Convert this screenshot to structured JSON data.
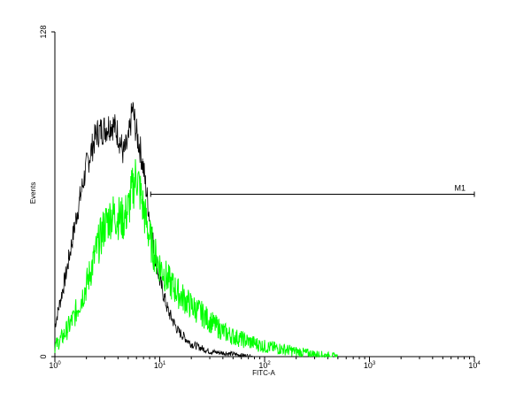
{
  "chart_data": {
    "type": "line",
    "title": "",
    "xlabel": "FITC-A",
    "ylabel": "Events",
    "x_scale": "log",
    "xlim": [
      1,
      10000
    ],
    "ylim": [
      0,
      128
    ],
    "y_ticks": [
      "0",
      "128"
    ],
    "x_ticks": [
      {
        "base": "10",
        "exp": "0"
      },
      {
        "base": "10",
        "exp": "1"
      },
      {
        "base": "10",
        "exp": "2"
      },
      {
        "base": "10",
        "exp": "3"
      },
      {
        "base": "10",
        "exp": "4"
      }
    ],
    "grid": false,
    "series": [
      {
        "color": "#000000",
        "points": [
          [
            1.0,
            12
          ],
          [
            1.1,
            20
          ],
          [
            1.3,
            34
          ],
          [
            1.6,
            55
          ],
          [
            2.0,
            75
          ],
          [
            2.5,
            88
          ],
          [
            3.0,
            90
          ],
          [
            3.5,
            92
          ],
          [
            4.0,
            88
          ],
          [
            4.5,
            80
          ],
          [
            5.0,
            84
          ],
          [
            5.5,
            98
          ],
          [
            6.0,
            88
          ],
          [
            6.5,
            82
          ],
          [
            7.0,
            74
          ],
          [
            8.0,
            55
          ],
          [
            9.0,
            40
          ],
          [
            10.0,
            30
          ],
          [
            12.0,
            18
          ],
          [
            15.0,
            10
          ],
          [
            20.0,
            5
          ],
          [
            30.0,
            2
          ],
          [
            50.0,
            1
          ],
          [
            80.0,
            0
          ]
        ]
      },
      {
        "color": "#00ff00",
        "points": [
          [
            1.0,
            4
          ],
          [
            1.2,
            8
          ],
          [
            1.5,
            15
          ],
          [
            2.0,
            28
          ],
          [
            2.5,
            42
          ],
          [
            3.0,
            52
          ],
          [
            3.5,
            56
          ],
          [
            4.0,
            55
          ],
          [
            4.5,
            54
          ],
          [
            5.0,
            58
          ],
          [
            5.5,
            66
          ],
          [
            6.0,
            72
          ],
          [
            6.5,
            65
          ],
          [
            7.0,
            58
          ],
          [
            8.0,
            47
          ],
          [
            9.0,
            40
          ],
          [
            10.0,
            36
          ],
          [
            12.0,
            30
          ],
          [
            15.0,
            25
          ],
          [
            20.0,
            20
          ],
          [
            25.0,
            17
          ],
          [
            30.0,
            14
          ],
          [
            40.0,
            10
          ],
          [
            50.0,
            8
          ],
          [
            70.0,
            6
          ],
          [
            100.0,
            4
          ],
          [
            150.0,
            3
          ],
          [
            200.0,
            2
          ],
          [
            300.0,
            1
          ],
          [
            500.0,
            0
          ]
        ]
      }
    ],
    "markers": [
      {
        "label": "M1",
        "x_start": 8.2,
        "x_end": 10000,
        "y": 64
      }
    ]
  }
}
